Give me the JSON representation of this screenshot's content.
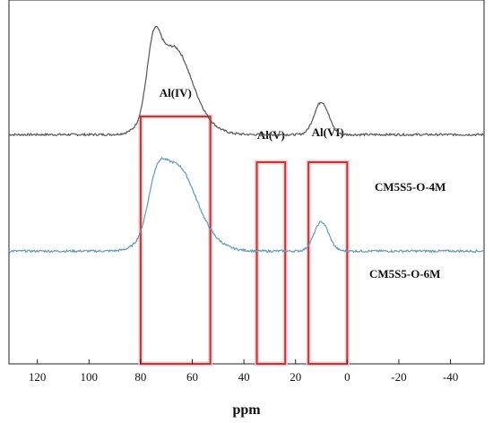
{
  "chart_data": {
    "type": "line",
    "xlabel": "ppm",
    "ylabel": "",
    "xlim": [
      131,
      -53
    ],
    "x_ticks": [
      120,
      100,
      80,
      60,
      40,
      20,
      0,
      -20,
      -40
    ],
    "x_tick_labels": [
      "120",
      "100",
      "80",
      "60",
      "40",
      "20",
      "0",
      "-20",
      "-40"
    ],
    "y_ticks": false,
    "grid": false,
    "legend": "none",
    "regions": [
      {
        "label": "Al(IV)",
        "x_range": [
          80,
          53
        ],
        "color": "#c0392b"
      },
      {
        "label": "Al(V)",
        "x_range": [
          35,
          24
        ],
        "color": "#c0392b"
      },
      {
        "label": "Al(VI)",
        "x_range": [
          15,
          0
        ],
        "color": "#c0392b"
      }
    ],
    "series": [
      {
        "name": "CM5S5-O-4M",
        "color": "#555555",
        "baseline": 0.63,
        "peaks": [
          {
            "center": 75,
            "height": 0.16,
            "width": 2.6
          },
          {
            "center": 68,
            "height": 0.19,
            "width": 6.5
          },
          {
            "center": 63,
            "height": 0.06,
            "width": 8
          },
          {
            "center": 10,
            "height": 0.09,
            "width": 2.8
          }
        ]
      },
      {
        "name": "CM5S5-O-6M",
        "color": "#5b9bbd",
        "baseline": 0.31,
        "peaks": [
          {
            "center": 74,
            "height": 0.1,
            "width": 3.2
          },
          {
            "center": 67,
            "height": 0.2,
            "width": 7
          },
          {
            "center": 60,
            "height": 0.05,
            "width": 8
          },
          {
            "center": 10,
            "height": 0.08,
            "width": 2.8
          }
        ]
      }
    ]
  }
}
